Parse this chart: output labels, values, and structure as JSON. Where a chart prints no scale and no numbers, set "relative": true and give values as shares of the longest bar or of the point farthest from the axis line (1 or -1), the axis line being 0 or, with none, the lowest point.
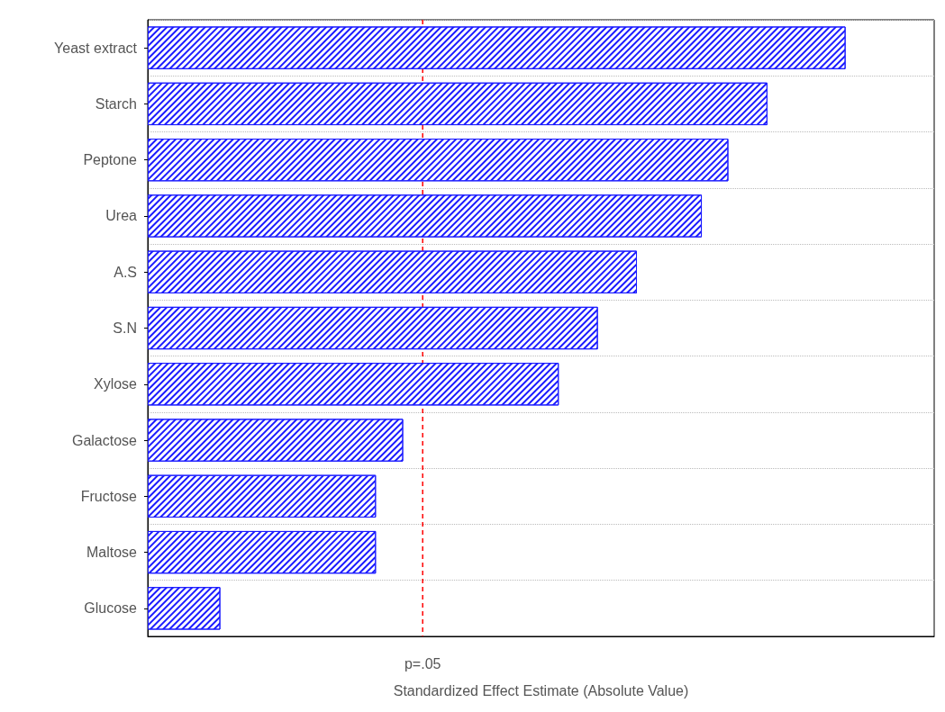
{
  "chart_data": {
    "type": "bar",
    "orientation": "horizontal",
    "relative": true,
    "xlabel": "Standardized Effect Estimate (Absolute Value)",
    "categories": [
      "Yeast extract",
      "Starch",
      "Peptone",
      "Urea",
      "A.S",
      "S.N",
      "Xylose",
      "Galactose",
      "Fructose",
      "Maltose",
      "Glucose"
    ],
    "values": [
      1,
      0.888,
      0.832,
      0.794,
      0.701,
      0.645,
      0.589,
      0.366,
      0.327,
      0.327,
      0.104
    ],
    "color": "#1a1aff",
    "grid": "y",
    "ref_lines": [
      {
        "axis": "x",
        "value": 0.394,
        "label": "p=.05",
        "color": "#ff0000",
        "line_style": "dashed"
      }
    ]
  }
}
